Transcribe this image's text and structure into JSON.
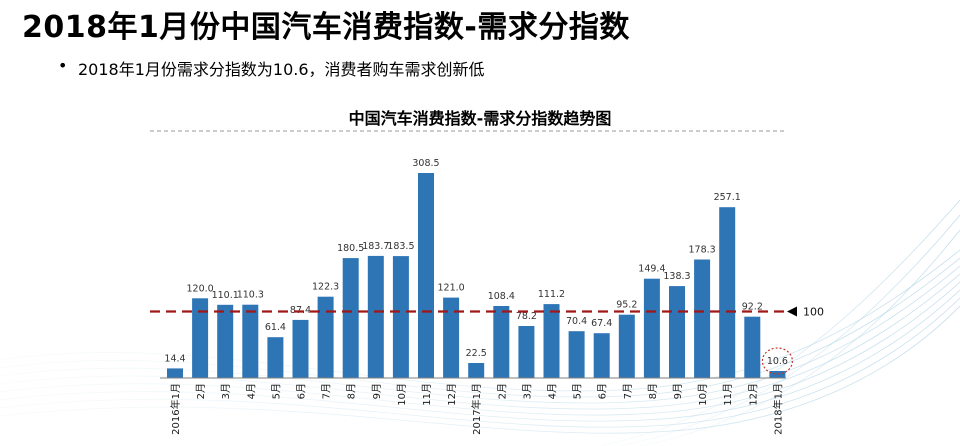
{
  "page": {
    "title": "2018年1月份中国汽车消费指数-需求分指数",
    "bullet": "2018年1月份需求分指数为10.6，消费者购车需求创新低"
  },
  "chart_data": {
    "type": "bar",
    "title": "中国汽车消费指数-需求分指数趋势图",
    "categories": [
      "2016年1月",
      "2月",
      "3月",
      "4月",
      "5月",
      "6月",
      "7月",
      "8月",
      "9月",
      "10月",
      "11月",
      "12月",
      "2017年1月",
      "2月",
      "3月",
      "4月",
      "5月",
      "6月",
      "7月",
      "8月",
      "9月",
      "10月",
      "11月",
      "12月",
      "2018年1月"
    ],
    "values": [
      14.4,
      120.0,
      110.1,
      110.3,
      61.4,
      87.4,
      122.3,
      180.5,
      183.7,
      183.5,
      308.5,
      121.0,
      22.5,
      108.4,
      78.2,
      111.2,
      70.4,
      67.4,
      95.2,
      149.4,
      138.3,
      178.3,
      257.1,
      92.2,
      10.6
    ],
    "value_labels": [
      "14.4",
      "120.0",
      "110.1",
      "110.3",
      "61.4",
      "87.4",
      "122.3",
      "180.5",
      "183.7",
      "183.5",
      "308.5",
      "121.0",
      "22.5",
      "108.4",
      "78.2",
      "111.2",
      "70.4",
      "67.4",
      "95.2",
      "149.4",
      "138.3",
      "178.3",
      "257.1",
      "92.2",
      "10.6"
    ],
    "ylim": [
      0,
      330
    ],
    "reference_line": {
      "value": 100,
      "label": "100",
      "color": "#a01818",
      "style": "dashed"
    },
    "highlight_index": 24,
    "bar_color": "#2e75b6",
    "grid": false,
    "legend": "none"
  }
}
